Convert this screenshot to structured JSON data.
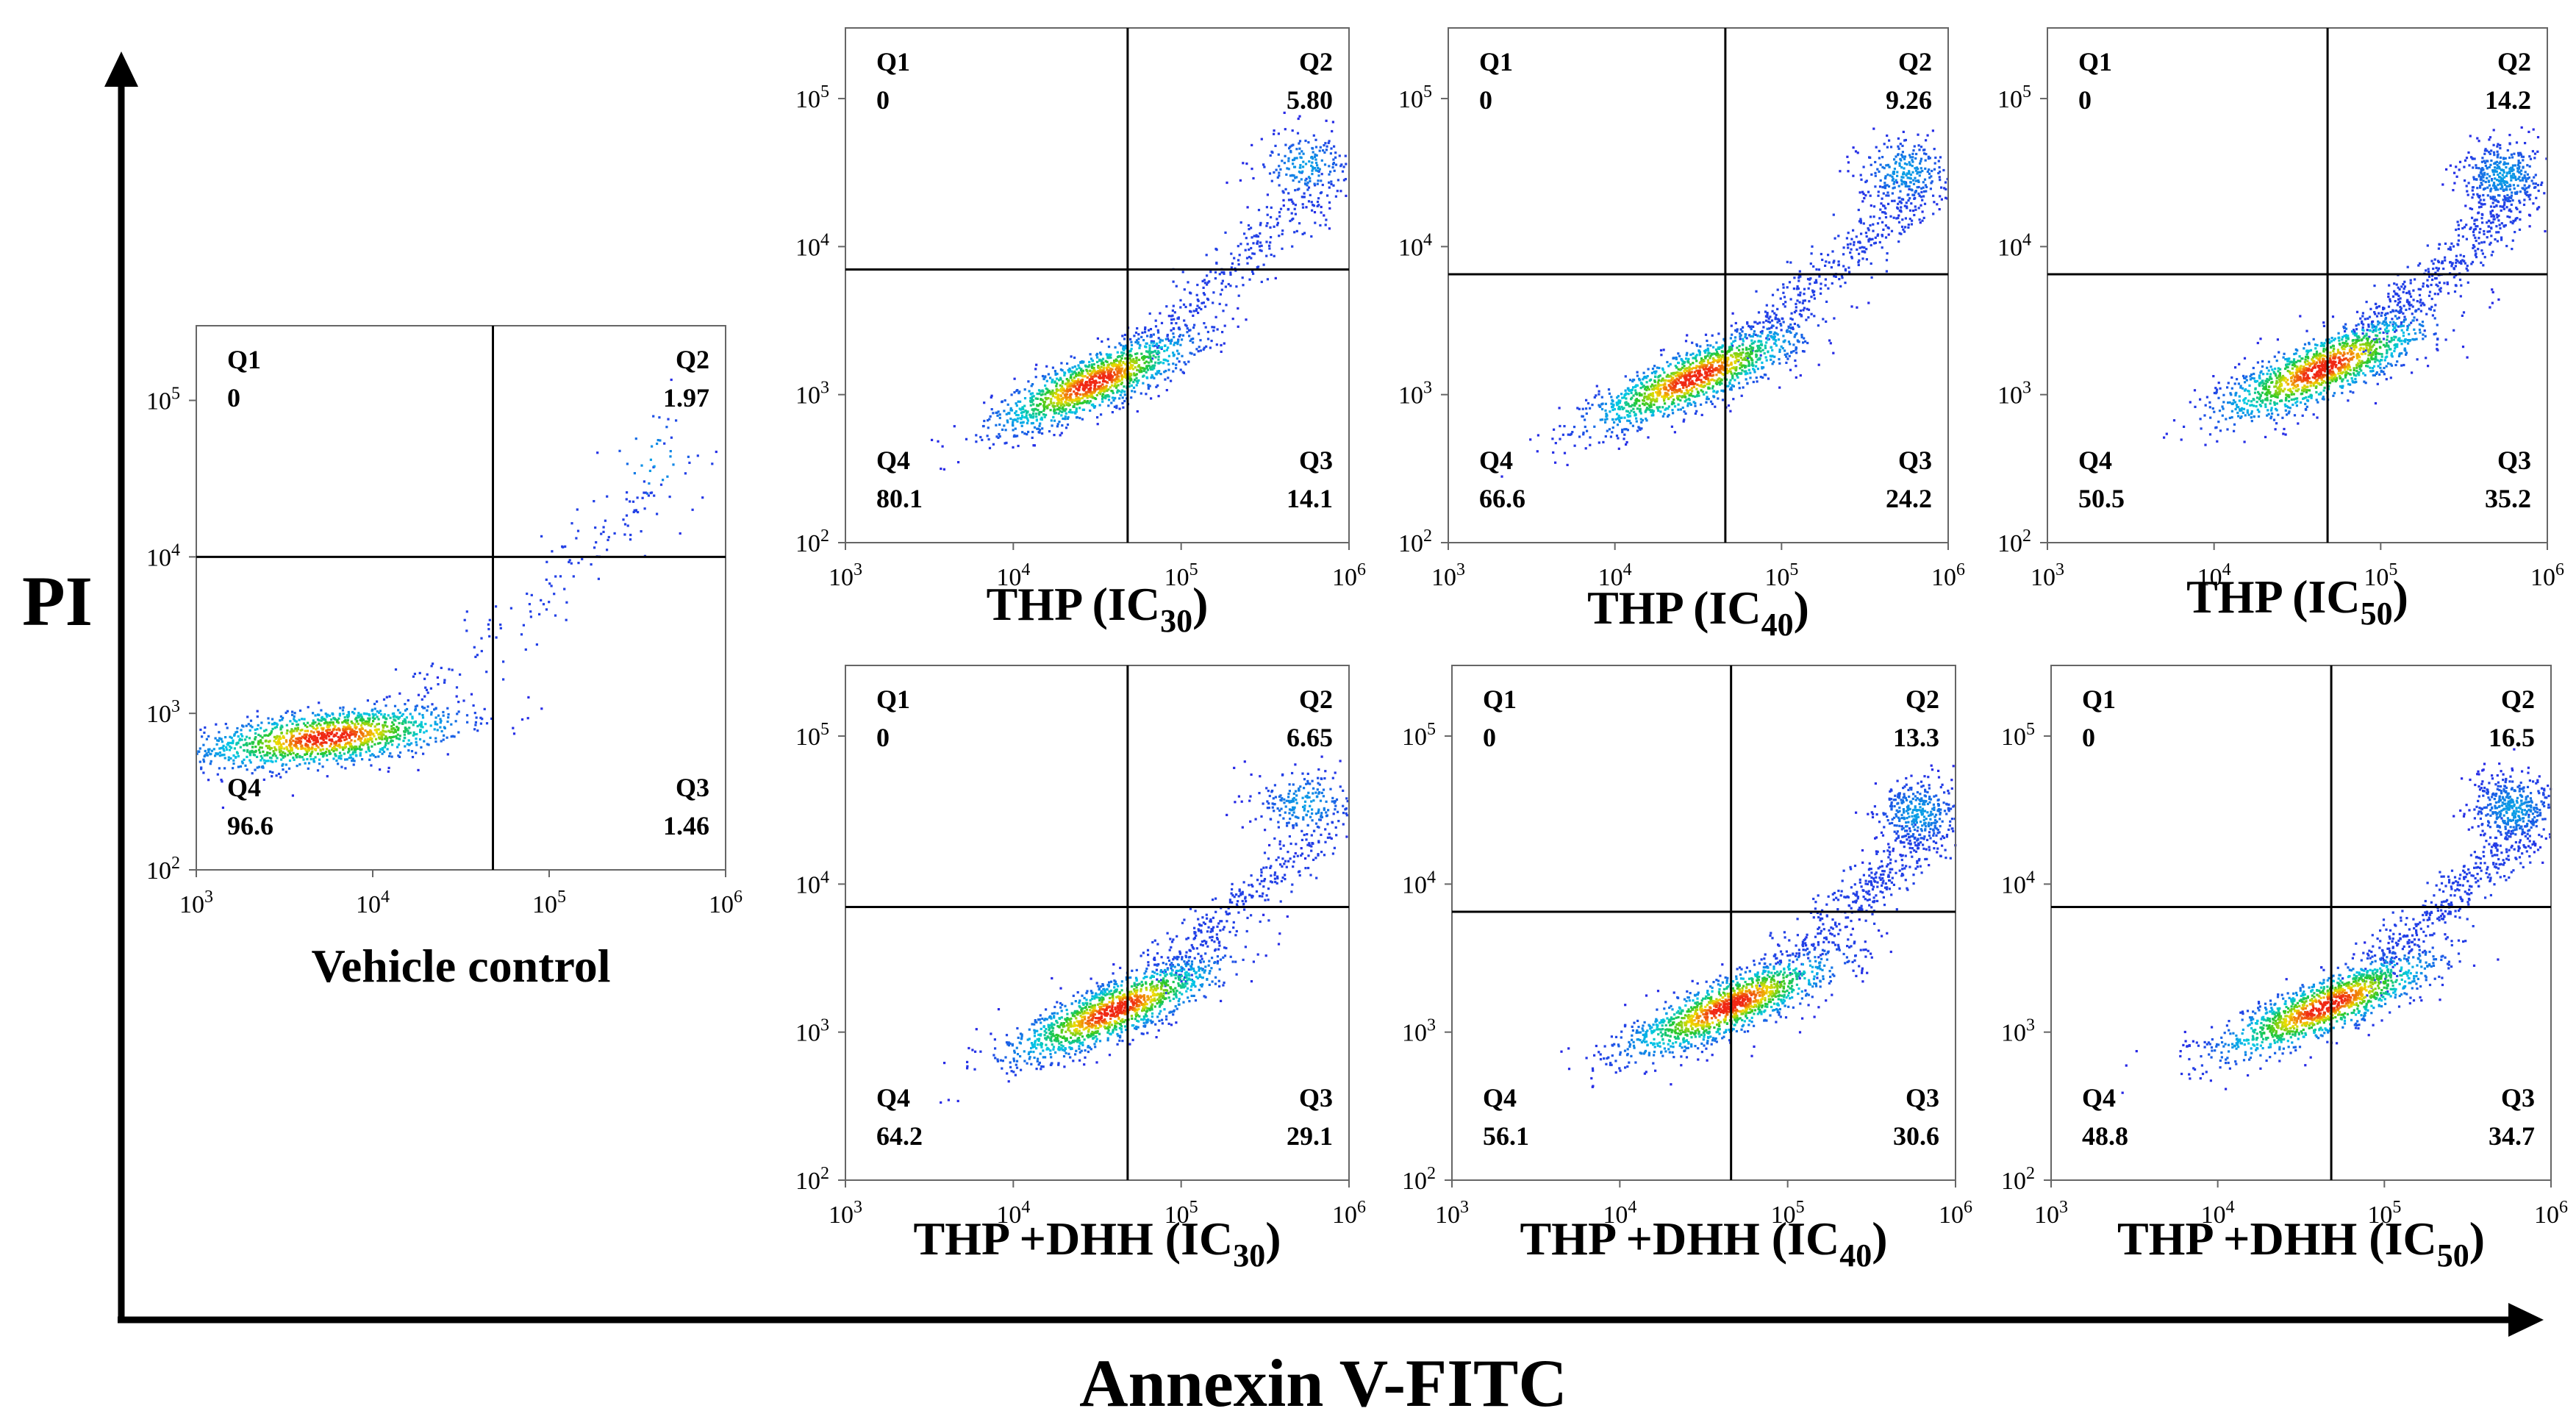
{
  "y_axis_label": "PI",
  "x_axis_label": "Annexin V-FITC",
  "chart_data": [
    {
      "type": "scatter",
      "subtype": "flow-cytometry-density-dot-plot",
      "title": "Vehicle control",
      "title_base": "Vehicle control",
      "title_sub": "",
      "xscale": "log",
      "yscale": "log",
      "xlim": [
        1000,
        1000000
      ],
      "ylim": [
        100,
        300000
      ],
      "xticks": [
        1000,
        10000,
        100000,
        1000000
      ],
      "yticks": [
        100,
        1000,
        10000,
        100000
      ],
      "gate": {
        "x": 48000,
        "y": 10000
      },
      "quadrants": [
        {
          "name": "Q1",
          "value": "0",
          "position": "top-left"
        },
        {
          "name": "Q2",
          "value": "1.97",
          "position": "top-right"
        },
        {
          "name": "Q3",
          "value": "1.46",
          "position": "bottom-right"
        },
        {
          "name": "Q4",
          "value": "96.6",
          "position": "bottom-left"
        }
      ],
      "population": {
        "center": [
          5500,
          700
        ],
        "spread": [
          0.38,
          0.09
        ],
        "tilt": 0.12,
        "n": 1300,
        "tail": {
          "from": [
            15000,
            1100
          ],
          "to": [
            600000,
            40000
          ],
          "n": 140,
          "spread": 0.22
        },
        "upper": {
          "center": [
            400000,
            40000
          ],
          "spread": [
            0.15,
            0.2
          ],
          "n": 30
        }
      }
    },
    {
      "type": "scatter",
      "subtype": "flow-cytometry-density-dot-plot",
      "title": "THP (IC30)",
      "title_base": "THP (IC",
      "title_sub": "30",
      "xscale": "log",
      "yscale": "log",
      "xlim": [
        1000,
        1000000
      ],
      "ylim": [
        100,
        300000
      ],
      "xticks": [
        1000,
        10000,
        100000,
        1000000
      ],
      "yticks": [
        100,
        1000,
        10000,
        100000
      ],
      "gate": {
        "x": 48000,
        "y": 7000
      },
      "quadrants": [
        {
          "name": "Q1",
          "value": "0",
          "position": "top-left"
        },
        {
          "name": "Q2",
          "value": "5.80",
          "position": "top-right"
        },
        {
          "name": "Q3",
          "value": "14.1",
          "position": "bottom-right"
        },
        {
          "name": "Q4",
          "value": "80.1",
          "position": "bottom-left"
        }
      ],
      "population": {
        "center": [
          30000,
          1200
        ],
        "spread": [
          0.3,
          0.1
        ],
        "tilt": 0.45,
        "n": 1300,
        "tail": {
          "from": [
            60000,
            2000
          ],
          "to": [
            700000,
            25000
          ],
          "n": 260,
          "spread": 0.18
        },
        "upper": {
          "center": [
            550000,
            35000
          ],
          "spread": [
            0.14,
            0.12
          ],
          "n": 200
        }
      }
    },
    {
      "type": "scatter",
      "subtype": "flow-cytometry-density-dot-plot",
      "title": "THP (IC40)",
      "title_base": "THP (IC",
      "title_sub": "40",
      "xscale": "log",
      "yscale": "log",
      "xlim": [
        1000,
        1000000
      ],
      "ylim": [
        100,
        300000
      ],
      "xticks": [
        1000,
        10000,
        100000,
        1000000
      ],
      "yticks": [
        100,
        1000,
        10000,
        100000
      ],
      "gate": {
        "x": 46000,
        "y": 6500
      },
      "quadrants": [
        {
          "name": "Q1",
          "value": "0",
          "position": "top-left"
        },
        {
          "name": "Q2",
          "value": "9.26",
          "position": "top-right"
        },
        {
          "name": "Q3",
          "value": "24.2",
          "position": "bottom-right"
        },
        {
          "name": "Q4",
          "value": "66.6",
          "position": "bottom-left"
        }
      ],
      "population": {
        "center": [
          30000,
          1300
        ],
        "spread": [
          0.32,
          0.1
        ],
        "tilt": 0.45,
        "n": 1300,
        "tail": {
          "from": [
            60000,
            2200
          ],
          "to": [
            650000,
            22000
          ],
          "n": 320,
          "spread": 0.18
        },
        "upper": {
          "center": [
            550000,
            32000
          ],
          "spread": [
            0.14,
            0.12
          ],
          "n": 280
        }
      }
    },
    {
      "type": "scatter",
      "subtype": "flow-cytometry-density-dot-plot",
      "title": "THP (IC50)",
      "title_base": "THP (IC",
      "title_sub": "50",
      "xscale": "log",
      "yscale": "log",
      "xlim": [
        1000,
        1000000
      ],
      "ylim": [
        100,
        300000
      ],
      "xticks": [
        1000,
        10000,
        100000,
        1000000
      ],
      "yticks": [
        100,
        1000,
        10000,
        100000
      ],
      "gate": {
        "x": 48000,
        "y": 6500
      },
      "quadrants": [
        {
          "name": "Q1",
          "value": "0",
          "position": "top-left"
        },
        {
          "name": "Q2",
          "value": "14.2",
          "position": "top-right"
        },
        {
          "name": "Q3",
          "value": "35.2",
          "position": "bottom-right"
        },
        {
          "name": "Q4",
          "value": "50.5",
          "position": "bottom-left"
        }
      ],
      "population": {
        "center": [
          45000,
          1500
        ],
        "spread": [
          0.32,
          0.11
        ],
        "tilt": 0.45,
        "n": 1300,
        "tail": {
          "from": [
            80000,
            2500
          ],
          "to": [
            700000,
            20000
          ],
          "n": 380,
          "spread": 0.18
        },
        "upper": {
          "center": [
            550000,
            30000
          ],
          "spread": [
            0.13,
            0.12
          ],
          "n": 380
        }
      }
    },
    {
      "type": "scatter",
      "subtype": "flow-cytometry-density-dot-plot",
      "title": "THP +DHH (IC30)",
      "title_base": "THP +DHH (IC",
      "title_sub": "30",
      "xscale": "log",
      "yscale": "log",
      "xlim": [
        1000,
        1000000
      ],
      "ylim": [
        100,
        300000
      ],
      "xticks": [
        1000,
        10000,
        100000,
        1000000
      ],
      "yticks": [
        100,
        1000,
        10000,
        100000
      ],
      "gate": {
        "x": 48000,
        "y": 7000
      },
      "quadrants": [
        {
          "name": "Q1",
          "value": "0",
          "position": "top-left"
        },
        {
          "name": "Q2",
          "value": "6.65",
          "position": "top-right"
        },
        {
          "name": "Q3",
          "value": "29.1",
          "position": "bottom-right"
        },
        {
          "name": "Q4",
          "value": "64.2",
          "position": "bottom-left"
        }
      ],
      "population": {
        "center": [
          40000,
          1400
        ],
        "spread": [
          0.32,
          0.1
        ],
        "tilt": 0.45,
        "n": 1300,
        "tail": {
          "from": [
            70000,
            2300
          ],
          "to": [
            700000,
            22000
          ],
          "n": 300,
          "spread": 0.18
        },
        "upper": {
          "center": [
            550000,
            35000
          ],
          "spread": [
            0.15,
            0.12
          ],
          "n": 220
        }
      }
    },
    {
      "type": "scatter",
      "subtype": "flow-cytometry-density-dot-plot",
      "title": "THP +DHH (IC40)",
      "title_base": "THP +DHH (IC",
      "title_sub": "40",
      "xscale": "log",
      "yscale": "log",
      "xlim": [
        1000,
        1000000
      ],
      "ylim": [
        100,
        300000
      ],
      "xticks": [
        1000,
        10000,
        100000,
        1000000
      ],
      "yticks": [
        100,
        1000,
        10000,
        100000
      ],
      "gate": {
        "x": 46000,
        "y": 6500
      },
      "quadrants": [
        {
          "name": "Q1",
          "value": "0",
          "position": "top-left"
        },
        {
          "name": "Q2",
          "value": "13.3",
          "position": "top-right"
        },
        {
          "name": "Q3",
          "value": "30.6",
          "position": "bottom-right"
        },
        {
          "name": "Q4",
          "value": "56.1",
          "position": "bottom-left"
        }
      ],
      "population": {
        "center": [
          45000,
          1500
        ],
        "spread": [
          0.32,
          0.1
        ],
        "tilt": 0.45,
        "n": 1300,
        "tail": {
          "from": [
            80000,
            2500
          ],
          "to": [
            700000,
            20000
          ],
          "n": 340,
          "spread": 0.18
        },
        "upper": {
          "center": [
            600000,
            30000
          ],
          "spread": [
            0.13,
            0.12
          ],
          "n": 360
        }
      }
    },
    {
      "type": "scatter",
      "subtype": "flow-cytometry-density-dot-plot",
      "title": "THP +DHH (IC50)",
      "title_base": "THP +DHH (IC",
      "title_sub": "50",
      "xscale": "log",
      "yscale": "log",
      "xlim": [
        1000,
        1000000
      ],
      "ylim": [
        100,
        300000
      ],
      "xticks": [
        1000,
        10000,
        100000,
        1000000
      ],
      "yticks": [
        100,
        1000,
        10000,
        100000
      ],
      "gate": {
        "x": 48000,
        "y": 7000
      },
      "quadrants": [
        {
          "name": "Q1",
          "value": "0",
          "position": "top-left"
        },
        {
          "name": "Q2",
          "value": "16.5",
          "position": "top-right"
        },
        {
          "name": "Q3",
          "value": "34.7",
          "position": "bottom-right"
        },
        {
          "name": "Q4",
          "value": "48.8",
          "position": "bottom-left"
        }
      ],
      "population": {
        "center": [
          45000,
          1500
        ],
        "spread": [
          0.33,
          0.1
        ],
        "tilt": 0.45,
        "n": 1300,
        "tail": {
          "from": [
            80000,
            2500
          ],
          "to": [
            700000,
            22000
          ],
          "n": 360,
          "spread": 0.18
        },
        "upper": {
          "center": [
            600000,
            32000
          ],
          "spread": [
            0.13,
            0.12
          ],
          "n": 420
        }
      }
    }
  ]
}
